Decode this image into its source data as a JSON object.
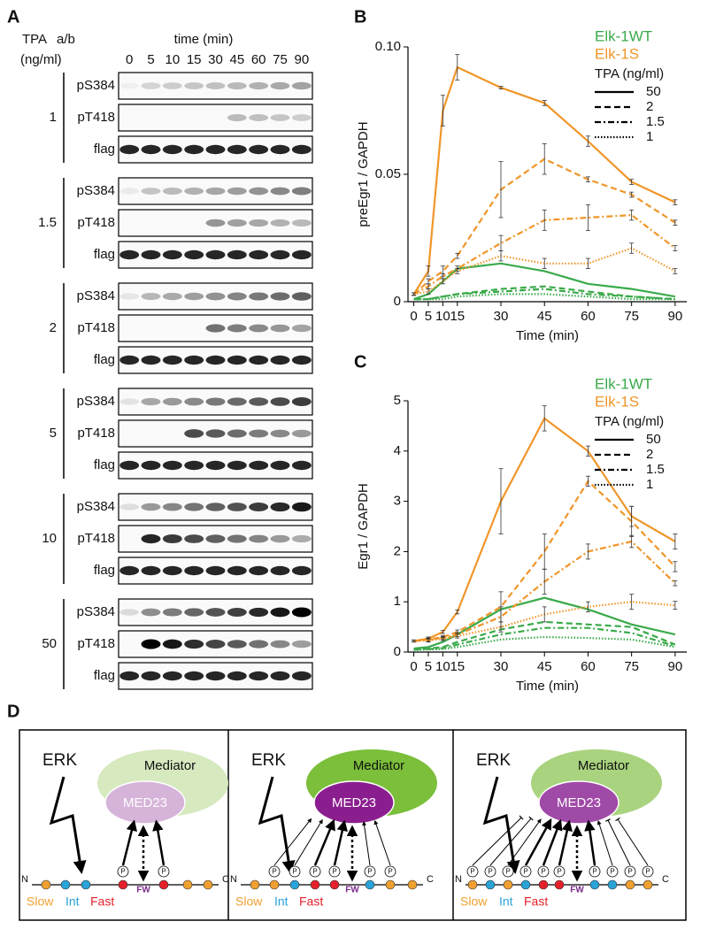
{
  "panel_a": {
    "label": "A",
    "dose_header": "TPA",
    "dose_unit": "(ng/ml)",
    "ab_header": "a/b",
    "time_header": "time (min)",
    "times": [
      "0",
      "5",
      "10",
      "15",
      "30",
      "45",
      "60",
      "75",
      "90"
    ],
    "groups": [
      {
        "dose": "1",
        "rows": [
          "pS384",
          "pT418",
          "flag"
        ]
      },
      {
        "dose": "1.5",
        "rows": [
          "pS384",
          "pT418",
          "flag"
        ]
      },
      {
        "dose": "2",
        "rows": [
          "pS384",
          "pT418",
          "flag"
        ]
      },
      {
        "dose": "5",
        "rows": [
          "pS384",
          "pT418",
          "flag"
        ]
      },
      {
        "dose": "10",
        "rows": [
          "pS384",
          "pT418",
          "flag"
        ]
      },
      {
        "dose": "50",
        "rows": [
          "pS384",
          "pT418",
          "flag"
        ]
      }
    ]
  },
  "chart_data": [
    {
      "type": "line",
      "panel_label": "B",
      "ylabel": "preEgr1 / GAPDH",
      "xlabel": "Time (min)",
      "x": [
        0,
        5,
        10,
        15,
        30,
        45,
        60,
        75,
        90
      ],
      "xlim": [
        -2,
        94
      ],
      "xticks": [
        0,
        5,
        10,
        15,
        30,
        45,
        60,
        75,
        90
      ],
      "ylim": [
        0,
        0.1
      ],
      "yticks": [
        0,
        0.05,
        {
          "value": 0.1,
          "label": "0.10"
        }
      ],
      "legend_title": "TPA (ng/ml)",
      "series": [
        {
          "name": "Elk-1WT",
          "color": "#3aaa4a",
          "doses": [
            {
              "name": "50",
              "dash": "solid",
              "values": [
                0.001,
                0.003,
                0.008,
                0.013,
                0.015,
                0.012,
                0.007,
                0.005,
                0.002
              ]
            },
            {
              "name": "2",
              "dash": "dashed",
              "values": [
                0.001,
                0.001,
                0.002,
                0.003,
                0.005,
                0.006,
                0.004,
                0.002,
                0.001
              ]
            },
            {
              "name": "1.5",
              "dash": "dashdot",
              "values": [
                0.001,
                0.001,
                0.002,
                0.003,
                0.004,
                0.005,
                0.003,
                0.002,
                0.001
              ]
            },
            {
              "name": "1",
              "dash": "dotted",
              "values": [
                0.001,
                0.001,
                0.001,
                0.002,
                0.003,
                0.003,
                0.002,
                0.001,
                0.001
              ]
            }
          ]
        },
        {
          "name": "Elk-1S",
          "color": "#f0962a",
          "doses": [
            {
              "name": "50",
              "dash": "solid",
              "values": [
                0.003,
                0.012,
                0.075,
                0.092,
                0.084,
                0.078,
                0.063,
                0.047,
                0.039
              ],
              "errors": [
                0.0005,
                0.002,
                0.006,
                0.005,
                0.0005,
                0.001,
                0.002,
                0.001,
                0.001
              ]
            },
            {
              "name": "2",
              "dash": "dashed",
              "values": [
                0.003,
                0.008,
                0.012,
                0.018,
                0.044,
                0.056,
                0.048,
                0.042,
                0.031
              ],
              "errors": [
                0.0005,
                0.001,
                0.002,
                0.001,
                0.011,
                0.006,
                0.001,
                0.001,
                0.001
              ]
            },
            {
              "name": "1.5",
              "dash": "dashdot",
              "values": [
                0.003,
                0.006,
                0.01,
                0.013,
                0.023,
                0.032,
                0.033,
                0.034,
                0.021
              ],
              "errors": [
                0.0005,
                0.001,
                0.001,
                0.001,
                0.003,
                0.004,
                0.005,
                0.002,
                0.001
              ]
            },
            {
              "name": "1",
              "dash": "dotted",
              "values": [
                0.003,
                0.004,
                0.008,
                0.012,
                0.018,
                0.015,
                0.015,
                0.021,
                0.012
              ],
              "errors": [
                0.0005,
                0.001,
                0.001,
                0.001,
                0.002,
                0.002,
                0.002,
                0.002,
                0.001
              ]
            }
          ]
        }
      ]
    },
    {
      "type": "line",
      "panel_label": "C",
      "ylabel": "Egr1 / GAPDH",
      "xlabel": "Time (min)",
      "x": [
        0,
        5,
        10,
        15,
        30,
        45,
        60,
        75,
        90
      ],
      "xlim": [
        -2,
        94
      ],
      "xticks": [
        0,
        5,
        10,
        15,
        30,
        45,
        60,
        75,
        90
      ],
      "ylim": [
        0,
        5
      ],
      "yticks": [
        0,
        1,
        2,
        3,
        4,
        5
      ],
      "legend_title": "TPA (ng/ml)",
      "series": [
        {
          "name": "Elk-1WT",
          "color": "#3aaa4a",
          "doses": [
            {
              "name": "50",
              "dash": "solid",
              "values": [
                0.07,
                0.1,
                0.2,
                0.35,
                0.85,
                1.08,
                0.85,
                0.55,
                0.35
              ]
            },
            {
              "name": "2",
              "dash": "dashed",
              "values": [
                0.05,
                0.07,
                0.1,
                0.2,
                0.45,
                0.6,
                0.55,
                0.5,
                0.15
              ]
            },
            {
              "name": "1.5",
              "dash": "dashdot",
              "values": [
                0.05,
                0.06,
                0.08,
                0.15,
                0.35,
                0.48,
                0.48,
                0.38,
                0.12
              ]
            },
            {
              "name": "1",
              "dash": "dotted",
              "values": [
                0.04,
                0.05,
                0.06,
                0.1,
                0.25,
                0.3,
                0.28,
                0.25,
                0.1
              ]
            }
          ]
        },
        {
          "name": "Elk-1S",
          "color": "#f0962a",
          "doses": [
            {
              "name": "50",
              "dash": "solid",
              "values": [
                0.22,
                0.27,
                0.4,
                0.8,
                3.0,
                4.65,
                4.0,
                2.7,
                2.2
              ],
              "errors": [
                0.02,
                0.03,
                0.03,
                0.04,
                0.65,
                0.25,
                0.1,
                0.2,
                0.15
              ]
            },
            {
              "name": "2",
              "dash": "dashed",
              "values": [
                0.22,
                0.25,
                0.3,
                0.4,
                0.9,
                2.0,
                3.4,
                2.6,
                1.7
              ],
              "errors": [
                0.02,
                0.03,
                0.03,
                0.04,
                0.3,
                0.35,
                0.1,
                0.3,
                0.1
              ]
            },
            {
              "name": "1.5",
              "dash": "dashdot",
              "values": [
                0.22,
                0.24,
                0.28,
                0.35,
                0.7,
                1.4,
                2.0,
                2.2,
                1.37
              ],
              "errors": [
                0.02,
                0.03,
                0.03,
                0.04,
                0.2,
                0.25,
                0.15,
                0.12,
                0.05
              ]
            },
            {
              "name": "1",
              "dash": "dotted",
              "values": [
                0.22,
                0.23,
                0.26,
                0.32,
                0.5,
                0.75,
                0.9,
                1.0,
                0.93
              ],
              "errors": [
                0.02,
                0.03,
                0.03,
                0.04,
                0.1,
                0.15,
                0.1,
                0.15,
                0.08
              ]
            }
          ]
        }
      ]
    }
  ],
  "panel_d": {
    "label": "D",
    "erk": "ERK",
    "mediator": "Mediator",
    "med23": "MED23",
    "n_term": "N",
    "c_term": "C",
    "fw": "FW",
    "phospho": "P",
    "classes": [
      "Slow",
      "Int",
      "Fast"
    ]
  }
}
